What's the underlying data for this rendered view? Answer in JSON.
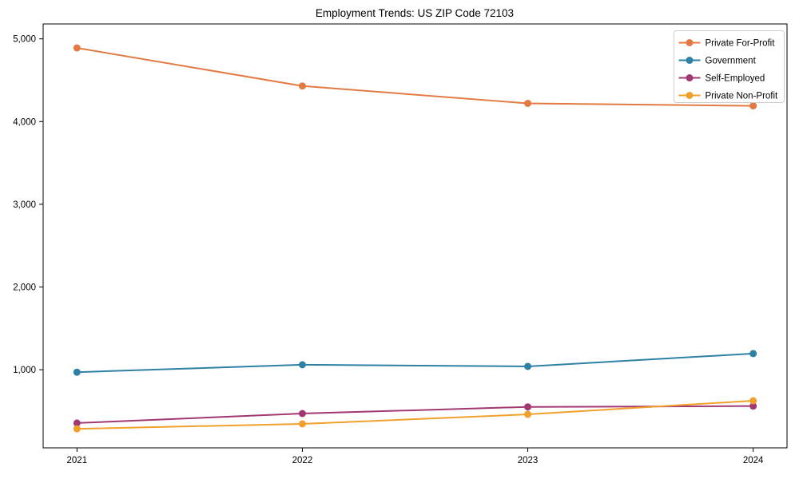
{
  "figure": {
    "background": "#ffffff",
    "spine_color": "#000000",
    "legend_border_color": "#cccccc",
    "legend_background": "#ffffff"
  },
  "chart_data": {
    "type": "line",
    "title": "Employment Trends: US ZIP Code 72103",
    "xlabel": "",
    "ylabel": "",
    "x": [
      2021,
      2022,
      2023,
      2024
    ],
    "xticks": [
      2021,
      2022,
      2023,
      2024
    ],
    "yticks": [
      1000,
      2000,
      3000,
      4000,
      5000
    ],
    "ytick_labels": [
      "1,000",
      "2,000",
      "3,000",
      "4,000",
      "5,000"
    ],
    "xlim": [
      2020.85,
      2024.15
    ],
    "ylim": [
      55,
      5180
    ],
    "grid": false,
    "legend_position": "upper right",
    "marker": "circle",
    "series": [
      {
        "name": "Private For-Profit",
        "color": "#E37A43",
        "values": [
          4890,
          4430,
          4220,
          4190
        ]
      },
      {
        "name": "Government",
        "color": "#2E81A2",
        "values": [
          970,
          1060,
          1040,
          1195
        ]
      },
      {
        "name": "Self-Employed",
        "color": "#A23873",
        "values": [
          355,
          470,
          550,
          560
        ]
      },
      {
        "name": "Private Non-Profit",
        "color": "#F0A02B",
        "values": [
          285,
          345,
          460,
          625
        ]
      }
    ]
  }
}
